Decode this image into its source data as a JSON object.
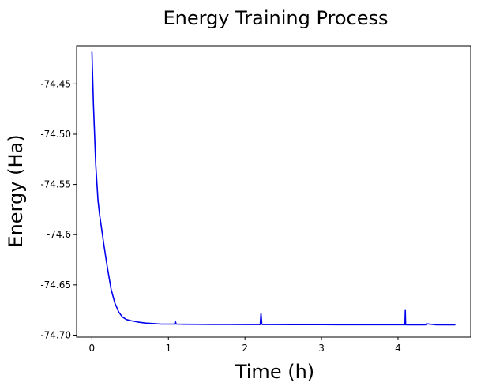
{
  "chart_data": {
    "type": "line",
    "title": "Energy Training Process",
    "xlabel": "Time (h)",
    "ylabel": "Energy (Ha)",
    "xlim": [
      -0.2,
      4.95
    ],
    "ylim": [
      -74.702,
      -74.412
    ],
    "xticks": [
      0,
      1,
      2,
      3,
      4
    ],
    "xtick_labels": [
      "0",
      "1",
      "2",
      "3",
      "4"
    ],
    "yticks": [
      -74.7,
      -74.65,
      -74.6,
      -74.55,
      -74.5,
      -74.45
    ],
    "ytick_labels": [
      "-74.70",
      "-74.65",
      -74.6,
      "-74.55",
      "-74.50",
      "-74.45"
    ],
    "grid": false,
    "series": [
      {
        "color": "#0000ee",
        "x": [
          0.0,
          0.02,
          0.05,
          0.08,
          0.1,
          0.13,
          0.16,
          0.2,
          0.25,
          0.3,
          0.35,
          0.4,
          0.45,
          0.5,
          0.6,
          0.7,
          0.8,
          0.9,
          1.0,
          1.08,
          1.09,
          1.1,
          1.2,
          1.4,
          1.6,
          1.8,
          2.0,
          2.2,
          2.21,
          2.22,
          2.23,
          2.4,
          2.6,
          2.8,
          3.0,
          3.2,
          3.4,
          3.6,
          3.8,
          4.0,
          4.09,
          4.095,
          4.1,
          4.12,
          4.3,
          4.37,
          4.38,
          4.5,
          4.7,
          4.75
        ],
        "y": [
          -74.418,
          -74.47,
          -74.53,
          -74.566,
          -74.58,
          -74.596,
          -74.612,
          -74.632,
          -74.654,
          -74.668,
          -74.677,
          -74.682,
          -74.6845,
          -74.6855,
          -74.687,
          -74.688,
          -74.6885,
          -74.689,
          -74.689,
          -74.689,
          -74.686,
          -74.689,
          -74.6892,
          -74.6893,
          -74.6894,
          -74.6894,
          -74.6895,
          -74.6895,
          -74.678,
          -74.689,
          -74.6895,
          -74.6895,
          -74.6896,
          -74.6896,
          -74.6896,
          -74.6897,
          -74.6897,
          -74.6897,
          -74.6897,
          -74.6897,
          -74.6897,
          -74.6755,
          -74.6897,
          -74.6898,
          -74.6898,
          -74.6898,
          -74.6888,
          -74.6898,
          -74.6898,
          -74.6898
        ]
      }
    ]
  }
}
